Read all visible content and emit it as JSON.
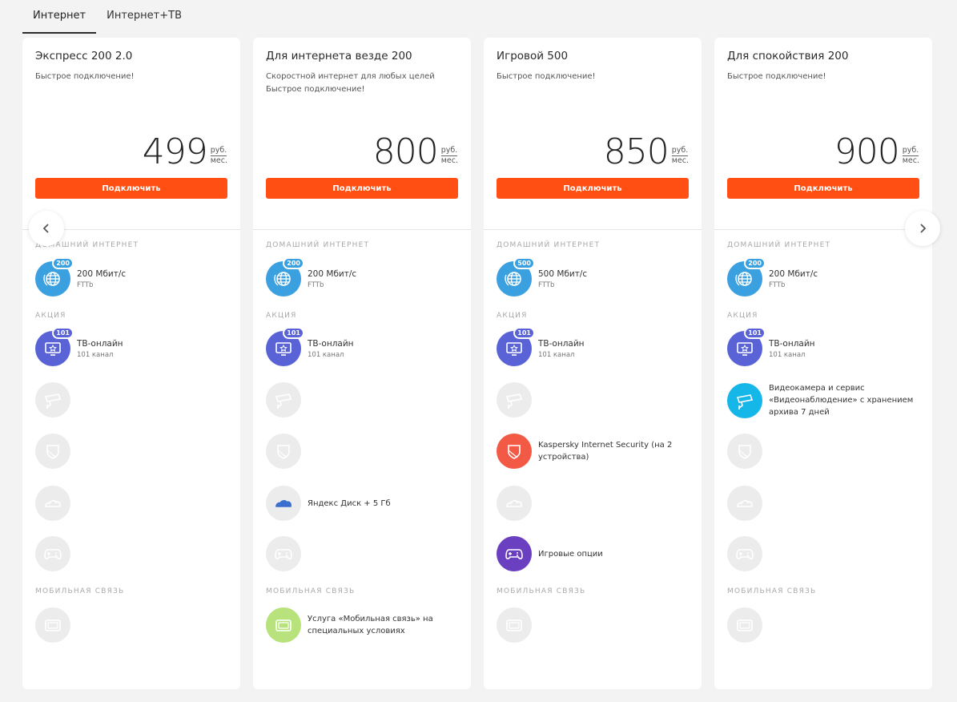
{
  "tabs": [
    "Интернет",
    "Интернет+ТВ"
  ],
  "sections": {
    "home": "ДОМАШНИЙ ИНТЕРНЕТ",
    "promo": "АКЦИЯ",
    "mobile": "МОБИЛЬНАЯ СВЯЗЬ"
  },
  "currency": {
    "unit": "руб.",
    "period": "мес."
  },
  "button_label": "Подключить",
  "colors": {
    "accent": "#ff4f12",
    "internet": "#3aa0e0",
    "tv": "#5a63d6",
    "camera": "#15b6e8",
    "kaspersky": "#f25a45",
    "yandex": "#3b6fcf",
    "games": "#6a3fc0",
    "mobile": "#b8e27c"
  },
  "cards": [
    {
      "title": "Экспресс 200 2.0",
      "subtitle": [
        "Быстрое подключение!"
      ],
      "price": "499",
      "internet": {
        "badge": "200",
        "speed": "200 Мбит/с",
        "tech": "FTTb"
      },
      "tv": {
        "badge": "101",
        "name": "ТВ-онлайн",
        "channels": "101 канал"
      },
      "camera": "",
      "kaspersky": "",
      "yandex": "",
      "games": "",
      "mobile": ""
    },
    {
      "title": "Для интернета везде 200",
      "subtitle": [
        "Скоростной интернет для любых целей",
        "Быстрое подключение!"
      ],
      "price": "800",
      "internet": {
        "badge": "200",
        "speed": "200 Мбит/с",
        "tech": "FTTb"
      },
      "tv": {
        "badge": "101",
        "name": "ТВ-онлайн",
        "channels": "101 канал"
      },
      "camera": "",
      "kaspersky": "",
      "yandex": "Яндекс Диск + 5 Гб",
      "games": "",
      "mobile": "Услуга «Мобильная связь» на специальных условиях"
    },
    {
      "title": "Игровой 500",
      "subtitle": [
        "Быстрое подключение!"
      ],
      "price": "850",
      "internet": {
        "badge": "500",
        "speed": "500 Мбит/с",
        "tech": "FTTb"
      },
      "tv": {
        "badge": "101",
        "name": "ТВ-онлайн",
        "channels": "101 канал"
      },
      "camera": "",
      "kaspersky": "Kaspersky Internet Security (на 2 устройства)",
      "yandex": "",
      "games": "Игровые опции",
      "mobile": ""
    },
    {
      "title": "Для спокойствия 200",
      "subtitle": [
        "Быстрое подключение!"
      ],
      "price": "900",
      "internet": {
        "badge": "200",
        "speed": "200 Мбит/с",
        "tech": "FTTb"
      },
      "tv": {
        "badge": "101",
        "name": "ТВ-онлайн",
        "channels": "101 канал"
      },
      "camera": "Видеокамера и сервис «Видеонаблюдение» с хранением архива 7 дней",
      "kaspersky": "",
      "yandex": "",
      "games": "",
      "mobile": ""
    }
  ]
}
